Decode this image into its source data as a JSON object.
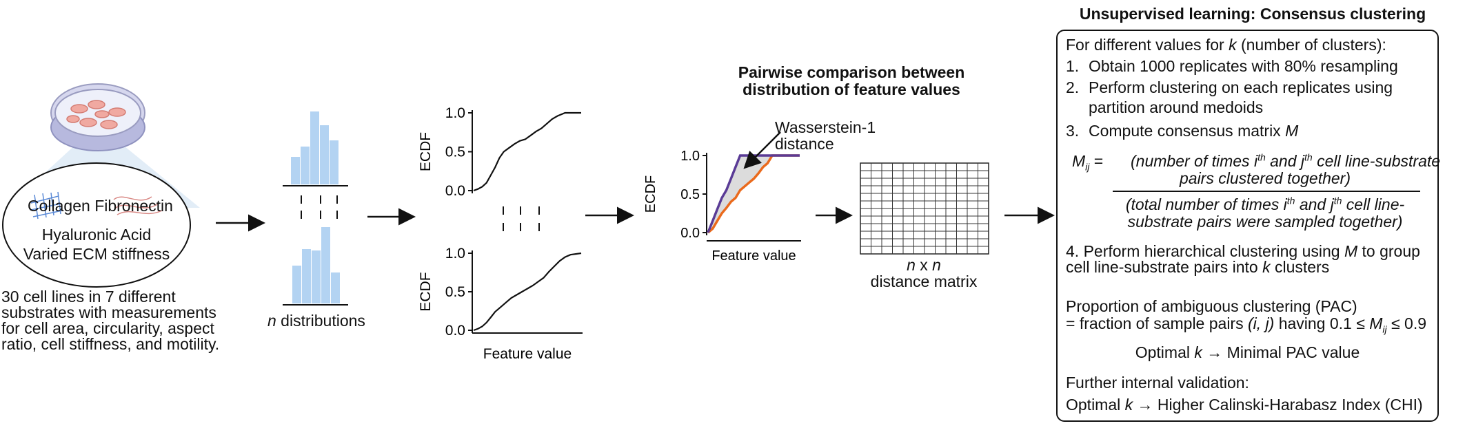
{
  "input": {
    "ecm_labels": [
      "Collagen",
      "Fibronectin",
      "Hyaluronic Acid",
      "Varied ECM stiffness"
    ],
    "description": [
      "30 cell lines in 7 different",
      "substrates with measurements",
      "for cell area, circularity, aspect",
      "ratio, cell stiffness, and motility."
    ]
  },
  "distributions": {
    "label_var": "n",
    "label_rest": " distributions"
  },
  "ecdf": {
    "ylabel": "ECDF",
    "xlabel": "Feature value",
    "yticks": [
      "1.0",
      "0.5",
      "0.0"
    ],
    "curve_a": [
      [
        0,
        0
      ],
      [
        0.04,
        0.02
      ],
      [
        0.08,
        0.05
      ],
      [
        0.12,
        0.1
      ],
      [
        0.16,
        0.2
      ],
      [
        0.2,
        0.3
      ],
      [
        0.24,
        0.42
      ],
      [
        0.28,
        0.5
      ],
      [
        0.33,
        0.55
      ],
      [
        0.38,
        0.6
      ],
      [
        0.43,
        0.64
      ],
      [
        0.48,
        0.66
      ],
      [
        0.53,
        0.71
      ],
      [
        0.58,
        0.76
      ],
      [
        0.63,
        0.8
      ],
      [
        0.68,
        0.86
      ],
      [
        0.73,
        0.92
      ],
      [
        0.78,
        0.96
      ],
      [
        0.85,
        1
      ],
      [
        1,
        1
      ]
    ],
    "curve_b": [
      [
        0,
        0
      ],
      [
        0.04,
        0.02
      ],
      [
        0.08,
        0.05
      ],
      [
        0.12,
        0.1
      ],
      [
        0.16,
        0.17
      ],
      [
        0.2,
        0.24
      ],
      [
        0.25,
        0.3
      ],
      [
        0.3,
        0.36
      ],
      [
        0.35,
        0.42
      ],
      [
        0.4,
        0.46
      ],
      [
        0.45,
        0.5
      ],
      [
        0.5,
        0.54
      ],
      [
        0.55,
        0.58
      ],
      [
        0.6,
        0.63
      ],
      [
        0.65,
        0.68
      ],
      [
        0.7,
        0.76
      ],
      [
        0.75,
        0.83
      ],
      [
        0.8,
        0.9
      ],
      [
        0.85,
        0.95
      ],
      [
        0.9,
        0.98
      ],
      [
        1,
        1
      ]
    ]
  },
  "pairwise": {
    "title_lines": [
      "Pairwise comparison between",
      "distribution of feature values"
    ],
    "annotation_lines": [
      "Wasserstein-1",
      "distance"
    ],
    "ylabel": "ECDF",
    "xlabel": "Feature value",
    "yticks": [
      "1.0",
      "0.5",
      "0.0"
    ],
    "purple": [
      [
        0,
        0
      ],
      [
        0.05,
        0.15
      ],
      [
        0.1,
        0.3
      ],
      [
        0.15,
        0.45
      ],
      [
        0.2,
        0.55
      ],
      [
        0.25,
        0.7
      ],
      [
        0.3,
        0.85
      ],
      [
        0.35,
        1
      ],
      [
        1,
        1
      ]
    ],
    "orange": [
      [
        0,
        0
      ],
      [
        0.05,
        0.05
      ],
      [
        0.1,
        0.15
      ],
      [
        0.15,
        0.25
      ],
      [
        0.2,
        0.32
      ],
      [
        0.25,
        0.4
      ],
      [
        0.3,
        0.45
      ],
      [
        0.35,
        0.55
      ],
      [
        0.4,
        0.6
      ],
      [
        0.45,
        0.65
      ],
      [
        0.5,
        0.7
      ],
      [
        0.55,
        0.77
      ],
      [
        0.6,
        0.85
      ],
      [
        0.65,
        0.9
      ],
      [
        0.7,
        1
      ],
      [
        1,
        1
      ]
    ],
    "colors": {
      "purple": "#5a3b96",
      "orange": "#ea6a1c",
      "fill": "#dcdcdc"
    }
  },
  "matrix": {
    "label_var1": "n",
    "label_x": " x ",
    "label_var2": "n",
    "label_line2": "distance matrix",
    "rows": 12,
    "cols": 12
  },
  "clustering": {
    "title": "Unsupervised learning: Consensus clustering",
    "intro_a": "For different values for ",
    "intro_k": "k",
    "intro_b": " (number of clusters):",
    "step1_num": "1.",
    "step1": "Obtain 1000 replicates with 80% resampling",
    "step2_num": "2.",
    "step2_a": "Perform clustering on each replicates using",
    "step2_b": "partition around medoids",
    "step3_num": "3.",
    "step3_a": "Compute consensus matrix ",
    "step3_m": "M",
    "formula_lhs_m": "M",
    "formula_lhs_sub": "ij",
    "formula_eq": " = ",
    "num_a": "(number of times i",
    "num_sup1": "th",
    "num_b": " and j",
    "num_sup2": "th",
    "num_c": " cell line-substrate",
    "num_d": "pairs clustered together)",
    "den_a": "(total number of times i",
    "den_sup1": "th",
    "den_b": " and j",
    "den_sup2": "th",
    "den_c": " cell line-",
    "den_d": "substrate pairs were sampled together)",
    "step4_a": "4. Perform hierarchical clustering using ",
    "step4_m": "M",
    "step4_b": " to group",
    "step4_c": "cell line-substrate pairs into ",
    "step4_k": "k",
    "step4_d": " clusters",
    "pac_1": "Proportion of ambiguous clustering (PAC)",
    "pac_2a": "= fraction of sample pairs ",
    "pac_2b": "(i, j)",
    "pac_2c": " having 0.1 ≤ ",
    "pac_2m": "M",
    "pac_2sub": "ij",
    "pac_2d": " ≤ 0.9",
    "optimal_a": "Optimal ",
    "optimal_k": "k",
    "optimal_b": "  → Minimal PAC value",
    "further": "Further internal validation:",
    "chi_a": "Optimal ",
    "chi_k": "k",
    "chi_b": "  → Higher Calinski-Harabasz Index (CHI)"
  }
}
